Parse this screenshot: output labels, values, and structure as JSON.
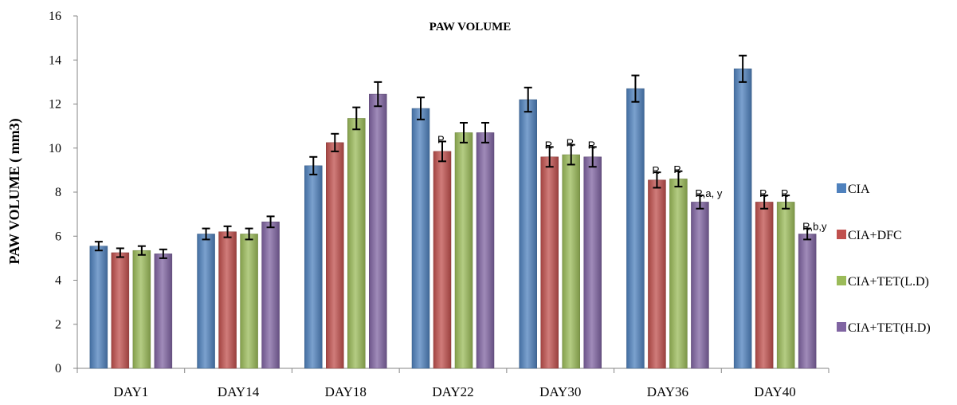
{
  "chart_data": {
    "type": "bar",
    "title": "PAW VOLUME",
    "ylabel": "PAW VOLUME ( mm3)",
    "xlabel": "",
    "ylim": [
      0,
      16
    ],
    "yticks": [
      0,
      2,
      4,
      6,
      8,
      10,
      12,
      14,
      16
    ],
    "categories": [
      "DAY1",
      "DAY14",
      "DAY18",
      "DAY22",
      "DAY30",
      "DAY36",
      "DAY40"
    ],
    "grid": false,
    "legend_position": "right",
    "series": [
      {
        "name": "CIA",
        "color": "#4F81BD",
        "values": [
          5.55,
          6.1,
          9.2,
          11.8,
          12.2,
          12.7,
          13.6
        ],
        "errors": [
          0.2,
          0.25,
          0.4,
          0.5,
          0.55,
          0.6,
          0.6
        ]
      },
      {
        "name": "CIA+DFC",
        "color": "#C0504D",
        "values": [
          5.25,
          6.2,
          10.25,
          9.85,
          9.6,
          8.55,
          7.55
        ],
        "errors": [
          0.2,
          0.25,
          0.4,
          0.45,
          0.45,
          0.35,
          0.3
        ]
      },
      {
        "name": "CIA+TET(L.D)",
        "color": "#9BBB59",
        "values": [
          5.35,
          6.1,
          11.35,
          10.7,
          9.7,
          8.6,
          7.55
        ],
        "errors": [
          0.2,
          0.25,
          0.5,
          0.45,
          0.45,
          0.35,
          0.3
        ]
      },
      {
        "name": "CIA+TET(H.D)",
        "color": "#8064A2",
        "values": [
          5.2,
          6.65,
          12.45,
          10.7,
          9.6,
          7.55,
          6.1
        ],
        "errors": [
          0.2,
          0.25,
          0.55,
          0.45,
          0.45,
          0.3,
          0.25
        ]
      }
    ],
    "annotations": [
      {
        "category": "DAY22",
        "series": "CIA+DFC",
        "text": "P"
      },
      {
        "category": "DAY30",
        "series": "CIA+DFC",
        "text": "R"
      },
      {
        "category": "DAY30",
        "series": "CIA+TET(L.D)",
        "text": "R"
      },
      {
        "category": "DAY30",
        "series": "CIA+TET(H.D)",
        "text": "R"
      },
      {
        "category": "DAY36",
        "series": "CIA+DFC",
        "text": "R"
      },
      {
        "category": "DAY36",
        "series": "CIA+TET(L.D)",
        "text": "R"
      },
      {
        "category": "DAY36",
        "series": "CIA+TET(H.D)",
        "text": "R,a, y"
      },
      {
        "category": "DAY40",
        "series": "CIA+DFC",
        "text": "R"
      },
      {
        "category": "DAY40",
        "series": "CIA+TET(L.D)",
        "text": "R"
      },
      {
        "category": "DAY40",
        "series": "CIA+TET(H.D)",
        "text": "R,b,y"
      }
    ]
  }
}
